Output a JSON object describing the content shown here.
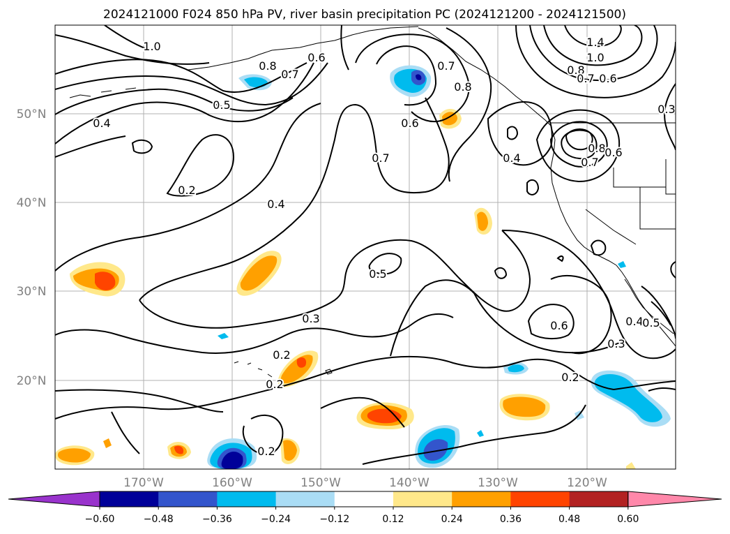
{
  "title": "2024121000 F024 850 hPa PV, river basin precipitation PC (2024121200 - 2024121500)",
  "lat_labels": [
    "50°N",
    "40°N",
    "30°N",
    "20°N"
  ],
  "lon_labels": [
    "170°W",
    "160°W",
    "150°W",
    "140°W",
    "130°W",
    "120°W"
  ],
  "colorbar": {
    "tick_labels": [
      "−0.60",
      "−0.48",
      "−0.36",
      "−0.24",
      "−0.12",
      "0.12",
      "0.24",
      "0.36",
      "0.48",
      "0.60"
    ],
    "colors": [
      "#9933cc",
      "#000099",
      "#3355cc",
      "#00bbee",
      "#aaddf5",
      "#ffffff",
      "#ffe88a",
      "#ffa000",
      "#ff4400",
      "#b22222",
      "#ff88aa"
    ]
  },
  "contour_labels": [
    "1.0",
    "0.8",
    "0.7",
    "0.6",
    "0.5",
    "0.4",
    "0.2",
    "0.7",
    "0.8",
    "0.6",
    "0.7",
    "1.4",
    "1.0",
    "0.8",
    "0.7",
    "0.6",
    "0.3",
    "0.4",
    "0.8",
    "0.7",
    "0.6",
    "0.4",
    "0.5",
    "0.3",
    "0.6",
    "0.3",
    "0.4",
    "0.5",
    "0.2",
    "0.2",
    "0.2",
    "0.2"
  ]
}
